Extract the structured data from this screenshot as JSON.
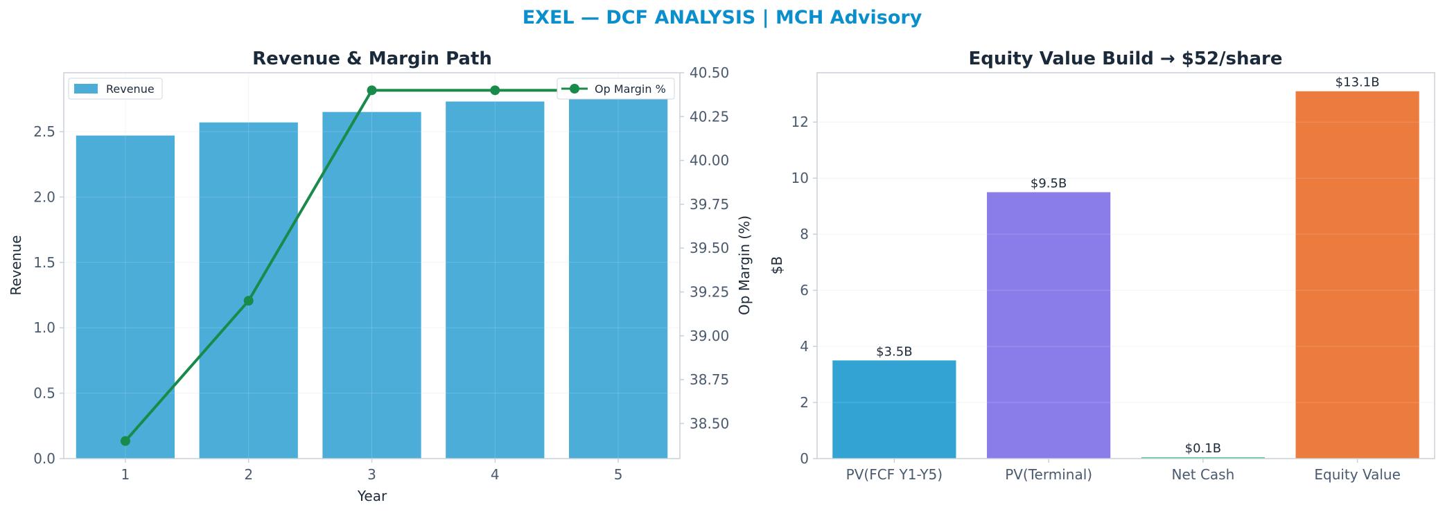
{
  "suptitle": "EXEL — DCF ANALYSIS | MCH Advisory",
  "colors": {
    "title": "#0b8fcc",
    "revenue_bar": "#4badd8",
    "op_margin_line": "#1a8a4a",
    "axis": "#c8d0da",
    "grid": "#eef1f4",
    "text_dark": "#1b2a3a",
    "text_tick": "#4a5a6e"
  },
  "chart_data": [
    {
      "type": "bar",
      "title": "Revenue & Margin Path",
      "xlabel": "Year",
      "ylabel": "Revenue",
      "y2label": "Op Margin (%)",
      "categories": [
        "1",
        "2",
        "3",
        "4",
        "5"
      ],
      "ylim": [
        0,
        2.95
      ],
      "yticks": [
        "0.0",
        "0.5",
        "1.0",
        "1.5",
        "2.0",
        "2.5"
      ],
      "y2lim": [
        38.3,
        40.5
      ],
      "y2ticks": [
        "38.50",
        "38.75",
        "39.00",
        "39.25",
        "39.50",
        "39.75",
        "40.00",
        "40.25",
        "40.50"
      ],
      "grid": true,
      "series": [
        {
          "name": "Revenue",
          "type": "bar",
          "axis": "left",
          "color": "#4badd8",
          "values": [
            2.47,
            2.57,
            2.65,
            2.73,
            2.81
          ]
        },
        {
          "name": "Op Margin %",
          "type": "line",
          "axis": "right",
          "color": "#1a8a4a",
          "values": [
            38.4,
            39.2,
            40.4,
            40.4,
            40.4
          ]
        }
      ],
      "legends": [
        {
          "placement": "top-left",
          "entries": [
            "Revenue"
          ]
        },
        {
          "placement": "top-right",
          "entries": [
            "Op Margin %"
          ]
        }
      ]
    },
    {
      "type": "bar",
      "title": "Equity Value Build → $52/share",
      "xlabel": "",
      "ylabel": "$B",
      "categories": [
        "PV(FCF Y1-Y5)",
        "PV(Terminal)",
        "Net Cash",
        "Equity Value"
      ],
      "values": [
        3.5,
        9.5,
        0.05,
        13.1
      ],
      "data_labels": [
        "$3.5B",
        "$9.5B",
        "$0.1B",
        "$13.1B"
      ],
      "colors": [
        "#33a3d4",
        "#8a7dea",
        "#5cc898",
        "#ec7b3e"
      ],
      "ylim": [
        0,
        13.76
      ],
      "yticks": [
        "0",
        "2",
        "4",
        "6",
        "8",
        "10",
        "12"
      ],
      "grid": true
    }
  ]
}
